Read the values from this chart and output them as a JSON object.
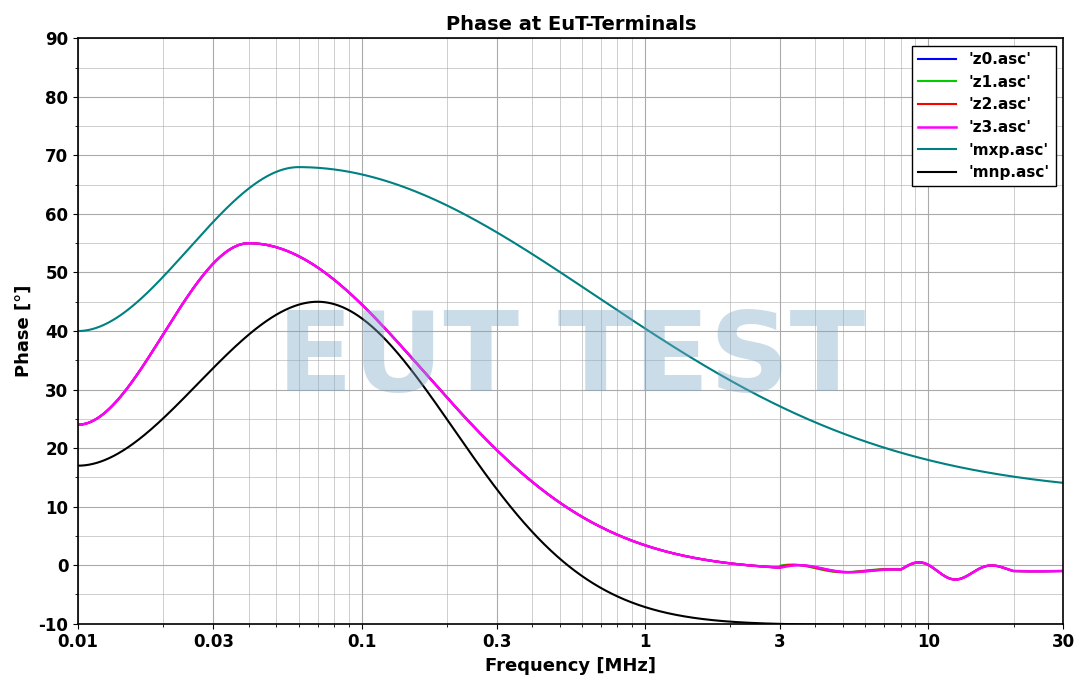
{
  "title": "Phase at EuT-Terminals",
  "xlabel": "Frequency [MHz]",
  "ylabel": "Phase [°]",
  "xmin": 0.01,
  "xmax": 30,
  "ymin": -10,
  "ymax": 90,
  "yticks": [
    -10,
    0,
    10,
    20,
    30,
    40,
    50,
    60,
    70,
    80,
    90
  ],
  "xticks": [
    0.01,
    0.03,
    0.1,
    0.3,
    1,
    3,
    10,
    30
  ],
  "xtick_labels": [
    "0.01",
    "0.03",
    "0.1",
    "0.3",
    "1",
    "3",
    "10",
    "30"
  ],
  "background_color": "#ffffff",
  "grid_color": "#aaaaaa",
  "watermark_text": "EUT TEST",
  "watermark_color": "#7fa8c8",
  "watermark_alpha": 0.4,
  "series": [
    {
      "label": "'z0.asc'",
      "color": "#0000ff",
      "linewidth": 1.5,
      "curve": "z0"
    },
    {
      "label": "'z1.asc'",
      "color": "#00cc00",
      "linewidth": 1.5,
      "curve": "z1"
    },
    {
      "label": "'z2.asc'",
      "color": "#ff0000",
      "linewidth": 1.5,
      "curve": "z2"
    },
    {
      "label": "'z3.asc'",
      "color": "#ff00ff",
      "linewidth": 1.8,
      "curve": "z3"
    },
    {
      "label": "'mxp.asc'",
      "color": "#008080",
      "linewidth": 1.5,
      "curve": "mxp"
    },
    {
      "label": "'mnp.asc'",
      "color": "#000000",
      "linewidth": 1.5,
      "curve": "mnp"
    }
  ]
}
